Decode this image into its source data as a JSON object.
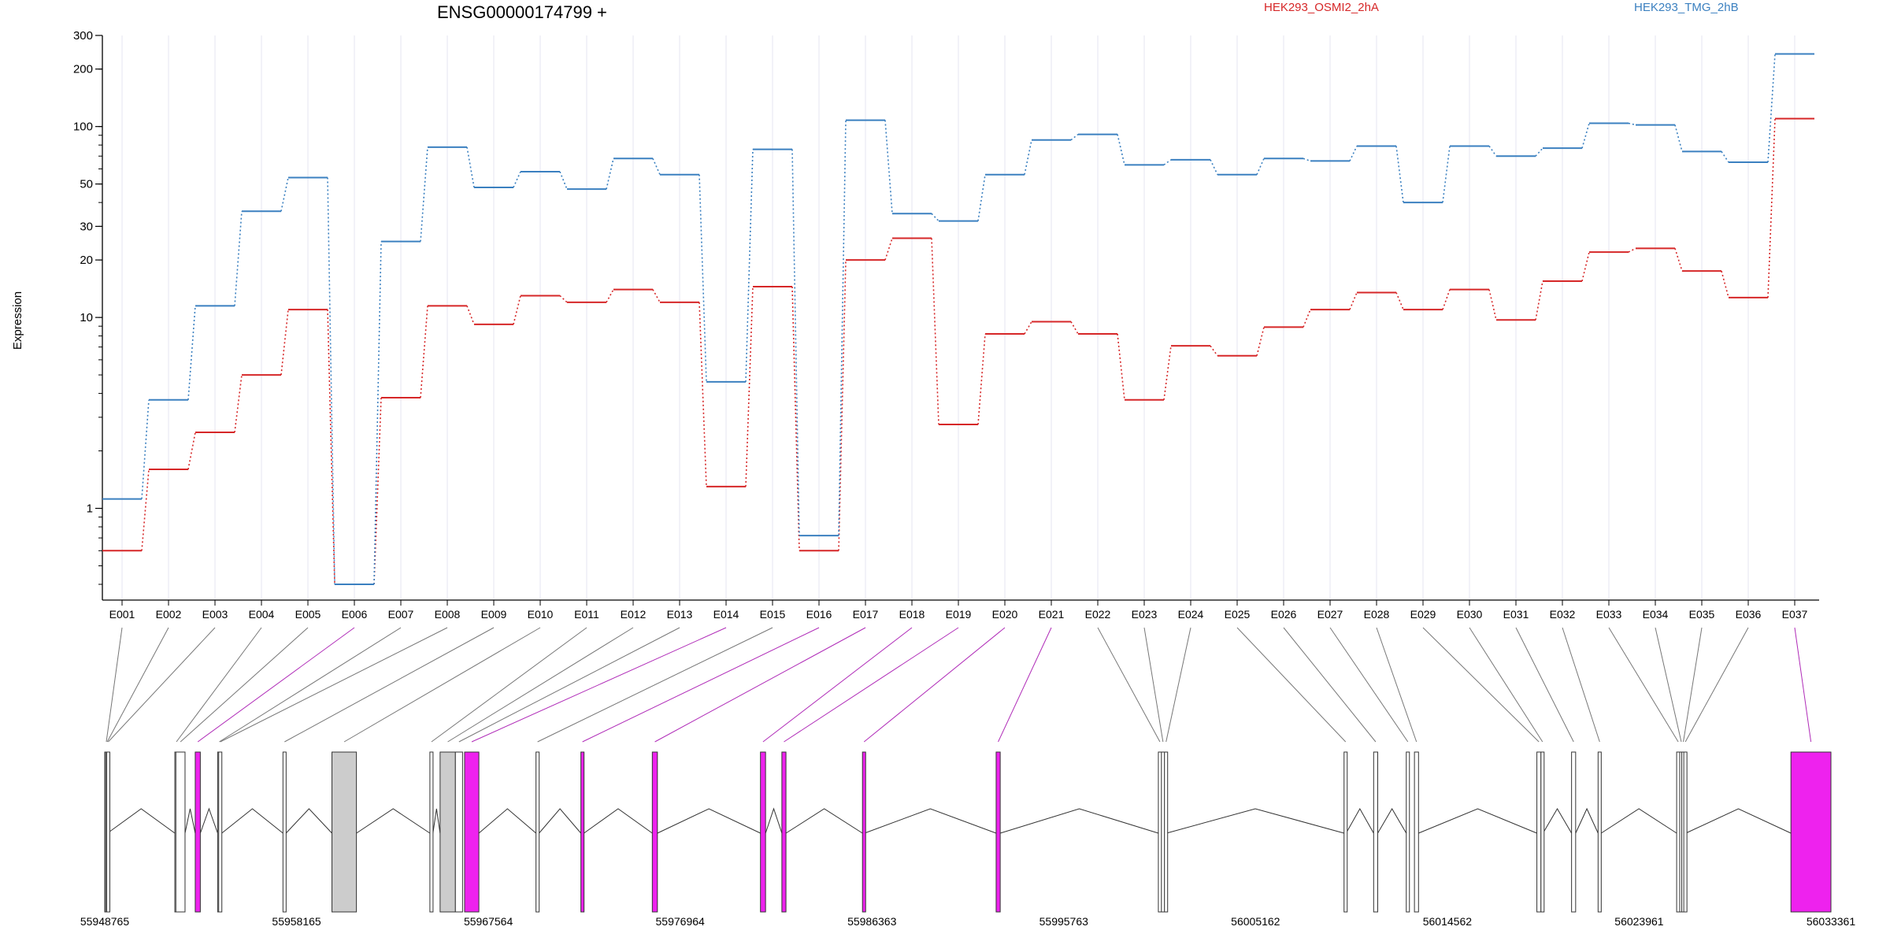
{
  "chart_data": {
    "type": "line",
    "title": "ENSG00000174799 +",
    "ylabel": "Expression",
    "xlabel": "",
    "y_scale": "log",
    "ylim": [
      0.4,
      300
    ],
    "y_ticks": [
      {
        "value": 1,
        "label": "1"
      },
      {
        "value": 10,
        "label": "10"
      },
      {
        "value": 20,
        "label": "20"
      },
      {
        "value": 30,
        "label": "30"
      },
      {
        "value": 50,
        "label": "50"
      },
      {
        "value": 100,
        "label": "100"
      },
      {
        "value": 200,
        "label": "200"
      },
      {
        "value": 300,
        "label": "300"
      }
    ],
    "categories": [
      "E001",
      "E002",
      "E003",
      "E004",
      "E005",
      "E006",
      "E007",
      "E008",
      "E009",
      "E010",
      "E011",
      "E012",
      "E013",
      "E014",
      "E015",
      "E016",
      "E017",
      "E018",
      "E019",
      "E020",
      "E021",
      "E022",
      "E023",
      "E024",
      "E025",
      "E026",
      "E027",
      "E028",
      "E029",
      "E030",
      "E031",
      "E032",
      "E033",
      "E034",
      "E035",
      "E036",
      "E037"
    ],
    "legend_position": "top",
    "series": [
      {
        "name": "HEK293_OSMI2_2hA",
        "color": "#d62728",
        "values": [
          0.6,
          1.6,
          2.5,
          5.0,
          11.0,
          0.4,
          3.8,
          11.5,
          9.2,
          13.0,
          12.0,
          14.0,
          12.0,
          1.3,
          14.5,
          0.6,
          20.0,
          26.0,
          2.75,
          8.2,
          9.5,
          8.2,
          3.7,
          7.1,
          6.3,
          8.9,
          11.0,
          13.5,
          11.0,
          14.0,
          9.7,
          15.5,
          22.0,
          23.0,
          17.5,
          12.7,
          110.0
        ]
      },
      {
        "name": "HEK293_TMG_2hB",
        "color": "#3b80c0",
        "values": [
          1.12,
          3.7,
          11.5,
          36.0,
          54.0,
          0.4,
          25.0,
          78.0,
          48.0,
          58.0,
          47.0,
          68.0,
          56.0,
          4.6,
          76.0,
          0.72,
          108.0,
          35.0,
          32.0,
          56.0,
          85.0,
          91.0,
          63.0,
          67.0,
          56.0,
          68.0,
          66.0,
          79.0,
          40.0,
          79.0,
          70.0,
          77.0,
          104.0,
          102.0,
          74.0,
          65.0,
          240.0
        ]
      }
    ],
    "gene_track": {
      "coordinate_labels": [
        "55948765",
        "55958165",
        "55967564",
        "55976964",
        "55986363",
        "55995763",
        "56005162",
        "56014562",
        "56023961",
        "56033361"
      ],
      "genomic_range": [
        55948765,
        56033361
      ],
      "highlight_color": "#ee22ee",
      "exons": [
        {
          "id": "E001",
          "start": 55948765,
          "end": 55948800,
          "type": "white"
        },
        {
          "id": "E002",
          "start": 55948810,
          "end": 55948850,
          "type": "white"
        },
        {
          "id": "E003",
          "start": 55948860,
          "end": 55948900,
          "type": "white"
        },
        {
          "id": "E004",
          "start": 55952200,
          "end": 55952250,
          "type": "white"
        },
        {
          "id": "E005",
          "start": 55952250,
          "end": 55952700,
          "type": "white"
        },
        {
          "id": "E006",
          "start": 55953200,
          "end": 55953450,
          "type": "magenta"
        },
        {
          "id": "E007",
          "start": 55954300,
          "end": 55954350,
          "type": "white"
        },
        {
          "id": "E008",
          "start": 55954350,
          "end": 55954500,
          "type": "white"
        },
        {
          "id": "E009",
          "start": 55957500,
          "end": 55957650,
          "type": "white"
        },
        {
          "id": "E010",
          "start": 55959900,
          "end": 55961100,
          "type": "grey"
        },
        {
          "id": "E011",
          "start": 55964700,
          "end": 55964850,
          "type": "white"
        },
        {
          "id": "E012",
          "start": 55965200,
          "end": 55965950,
          "type": "grey"
        },
        {
          "id": "E013",
          "start": 55965950,
          "end": 55966300,
          "type": "white"
        },
        {
          "id": "E014",
          "start": 55966400,
          "end": 55967100,
          "type": "magenta"
        },
        {
          "id": "E015",
          "start": 55969900,
          "end": 55970050,
          "type": "white"
        },
        {
          "id": "E016",
          "start": 55972100,
          "end": 55972250,
          "type": "magenta"
        },
        {
          "id": "E017",
          "start": 55975600,
          "end": 55975850,
          "type": "magenta"
        },
        {
          "id": "E018",
          "start": 55980900,
          "end": 55981150,
          "type": "magenta"
        },
        {
          "id": "E019",
          "start": 55981950,
          "end": 55982150,
          "type": "magenta"
        },
        {
          "id": "E020",
          "start": 55985900,
          "end": 55986000,
          "type": "magenta"
        },
        {
          "id": "E021",
          "start": 55992450,
          "end": 55992650,
          "type": "magenta"
        },
        {
          "id": "E022",
          "start": 56000400,
          "end": 56000500,
          "type": "white"
        },
        {
          "id": "E023",
          "start": 56000550,
          "end": 56000650,
          "type": "white"
        },
        {
          "id": "E024",
          "start": 56000700,
          "end": 56000800,
          "type": "white"
        },
        {
          "id": "E025",
          "start": 56009500,
          "end": 56009600,
          "type": "white"
        },
        {
          "id": "E026",
          "start": 56010950,
          "end": 56011150,
          "type": "white"
        },
        {
          "id": "E027",
          "start": 56012550,
          "end": 56012700,
          "type": "white"
        },
        {
          "id": "E028",
          "start": 56012950,
          "end": 56013150,
          "type": "white"
        },
        {
          "id": "E029",
          "start": 56018950,
          "end": 56019150,
          "type": "white"
        },
        {
          "id": "E030",
          "start": 56019150,
          "end": 56019250,
          "type": "white"
        },
        {
          "id": "E031",
          "start": 56020650,
          "end": 56020850,
          "type": "white"
        },
        {
          "id": "E032",
          "start": 56021950,
          "end": 56022100,
          "type": "white"
        },
        {
          "id": "E033",
          "start": 56025800,
          "end": 56025950,
          "type": "white"
        },
        {
          "id": "E034",
          "start": 56025950,
          "end": 56026050,
          "type": "white"
        },
        {
          "id": "E035",
          "start": 56026050,
          "end": 56026150,
          "type": "white"
        },
        {
          "id": "E036",
          "start": 56026150,
          "end": 56026250,
          "type": "white"
        },
        {
          "id": "E037",
          "start": 56031400,
          "end": 56033361,
          "type": "magenta"
        }
      ],
      "introns": [
        [
          55948900,
          55952200
        ],
        [
          55952700,
          55953200
        ],
        [
          55953450,
          55954300
        ],
        [
          55954500,
          55957500
        ],
        [
          55957650,
          55959900
        ],
        [
          55961100,
          55964700
        ],
        [
          55964850,
          55965200
        ],
        [
          55967100,
          55969900
        ],
        [
          55970050,
          55972100
        ],
        [
          55972250,
          55975600
        ],
        [
          55975850,
          55980900
        ],
        [
          55981150,
          55981950
        ],
        [
          55982150,
          55985900
        ],
        [
          55986000,
          55992450
        ],
        [
          55992650,
          56000400
        ],
        [
          56000800,
          56009500
        ],
        [
          56009600,
          56010950
        ],
        [
          56011150,
          56012550
        ],
        [
          56013150,
          56018950
        ],
        [
          56019250,
          56020650
        ],
        [
          56020850,
          56021950
        ],
        [
          56022100,
          56025800
        ],
        [
          56026250,
          56031400
        ]
      ]
    }
  }
}
